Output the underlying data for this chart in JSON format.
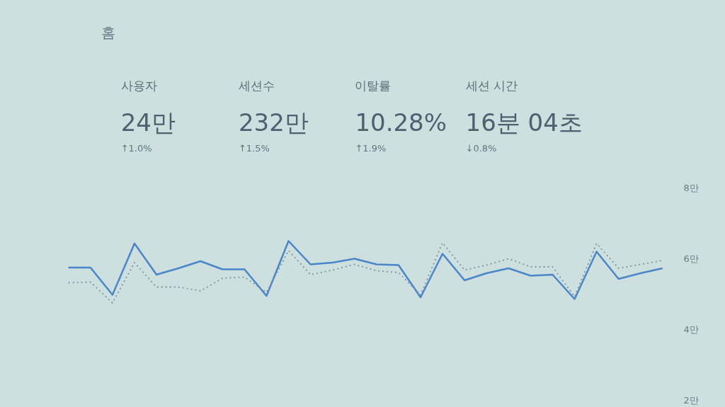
{
  "chart_data": [
    {
      "type": "other",
      "title": "홈",
      "annotations": [
        "사용자",
        "24만",
        "↑1.0%",
        "세션수",
        "232만",
        "↑1.5%",
        "이탈률",
        "10.28%",
        "↑1.9%",
        "세션 시간",
        "16분 04초",
        "↓0.8%"
      ]
    },
    {
      "type": "line",
      "categories": [
        null,
        null,
        null,
        null,
        null,
        null,
        null,
        null,
        null,
        null,
        null,
        null,
        null,
        null,
        null,
        null,
        null,
        null,
        null,
        null,
        null,
        null,
        null,
        null,
        null,
        null,
        null,
        null
      ],
      "series": [
        {
          "color": "#4a86c8",
          "line_style": "solid",
          "values": [
            5.75,
            5.75,
            4.98,
            6.43,
            5.55,
            5.73,
            5.93,
            5.7,
            5.7,
            4.95,
            6.5,
            5.84,
            5.89,
            6.0,
            5.84,
            5.82,
            4.91,
            6.14,
            5.39,
            5.59,
            5.73,
            5.52,
            5.55,
            4.86,
            6.2,
            5.43,
            5.59,
            5.73
          ]
        },
        {
          "color": "#7f94a6",
          "line_style": "dotted",
          "values": [
            5.32,
            5.34,
            4.75,
            5.89,
            5.2,
            5.2,
            5.09,
            5.45,
            5.48,
            5.05,
            6.23,
            5.55,
            5.68,
            5.84,
            5.66,
            5.61,
            4.98,
            6.45,
            5.68,
            5.82,
            6.0,
            5.77,
            5.77,
            4.93,
            6.43,
            5.73,
            5.84,
            5.95
          ]
        }
      ],
      "ylim": [
        2,
        8
      ],
      "yticks": [
        {
          "value": 2,
          "label": "2만"
        },
        {
          "value": 4,
          "label": "4만"
        },
        {
          "value": 6,
          "label": "6만"
        },
        {
          "value": 8,
          "label": "8만"
        }
      ],
      "tick_labels": "y"
    }
  ]
}
